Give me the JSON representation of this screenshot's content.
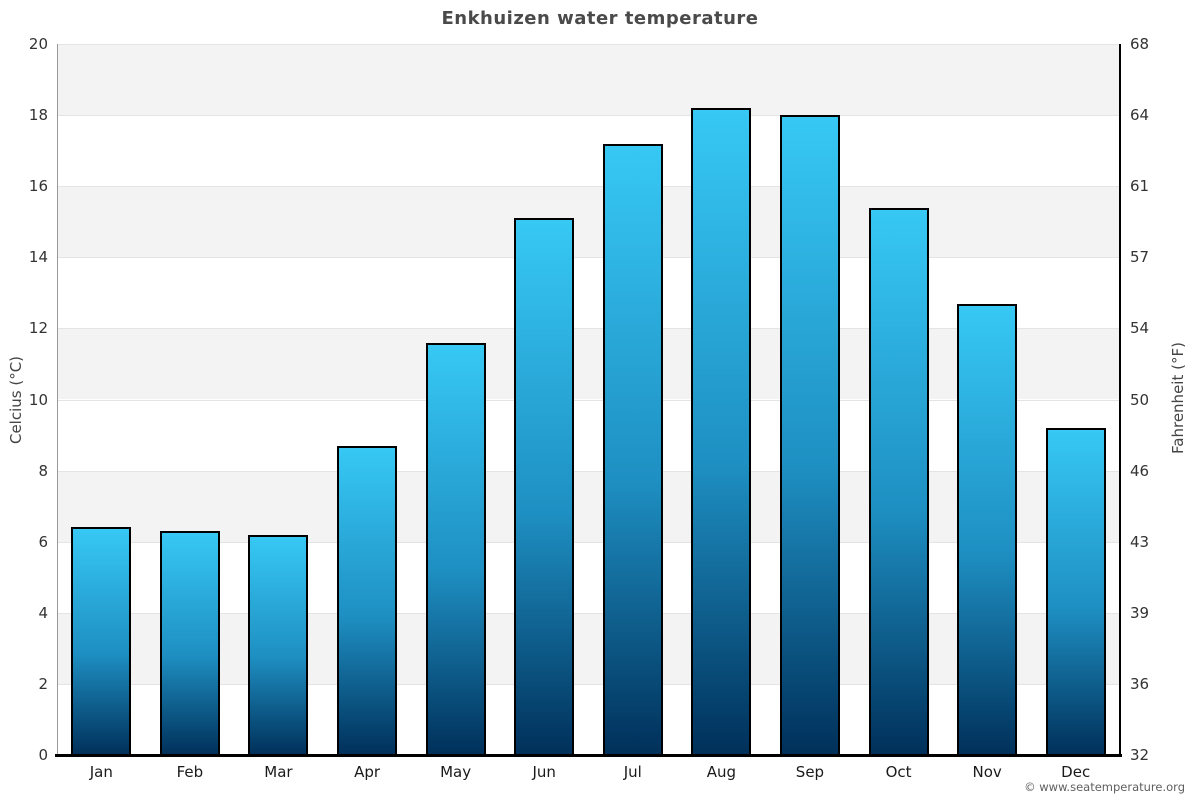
{
  "page": {
    "copyright": "© www.seatemperature.org"
  },
  "chart_data": {
    "type": "bar",
    "title": "Enkhuizen water temperature",
    "categories": [
      "Jan",
      "Feb",
      "Mar",
      "Apr",
      "May",
      "Jun",
      "Jul",
      "Aug",
      "Sep",
      "Oct",
      "Nov",
      "Dec"
    ],
    "values": [
      6.4,
      6.3,
      6.2,
      8.7,
      11.6,
      15.1,
      17.2,
      18.2,
      18.0,
      15.4,
      12.7,
      9.2
    ],
    "unit": "°C",
    "ylabel_left": "Celcius (°C)",
    "ylabel_right": "Fahrenheit (°F)",
    "ylim_left": [
      0,
      20
    ],
    "yticks_left": [
      0,
      2,
      4,
      6,
      8,
      10,
      12,
      14,
      16,
      18,
      20
    ],
    "yticks_right": [
      32,
      36,
      39,
      43,
      46,
      50,
      54,
      57,
      61,
      64,
      68
    ],
    "grid": true,
    "legend": "none",
    "colors": {
      "bar_gradient_top": "#37c8f4",
      "bar_gradient_mid": "#1e8fc2",
      "bar_gradient_bottom": "#00305a",
      "bar_border": "#000000",
      "band_gray": "#f3f3f3",
      "band_white": "#ffffff",
      "gridline": "#e4e4e4",
      "left_axis_line": "#999999",
      "right_axis_line": "#000000",
      "bottom_axis_line": "#000000",
      "title_color": "#4a4a4a"
    }
  }
}
